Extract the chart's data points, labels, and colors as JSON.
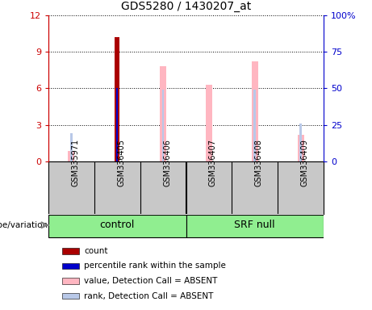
{
  "title": "GDS5280 / 1430207_at",
  "samples": [
    "GSM335971",
    "GSM336405",
    "GSM336406",
    "GSM336407",
    "GSM336408",
    "GSM336409"
  ],
  "ylim_left": [
    0,
    12
  ],
  "ylim_right": [
    0,
    100
  ],
  "yticks_left": [
    0,
    3,
    6,
    9,
    12
  ],
  "ytick_labels_left": [
    "0",
    "3",
    "6",
    "9",
    "12"
  ],
  "ytick_labels_right": [
    "0",
    "25",
    "50",
    "75",
    "100%"
  ],
  "count_values": [
    null,
    10.2,
    null,
    null,
    null,
    null
  ],
  "percentile_rank_values": [
    null,
    6.0,
    null,
    null,
    null,
    null
  ],
  "value_absent_values": [
    0.85,
    null,
    7.8,
    6.3,
    8.2,
    2.2
  ],
  "rank_absent_values": [
    2.3,
    null,
    5.9,
    null,
    5.9,
    3.1
  ],
  "colors": {
    "count": "#AA0000",
    "percentile_rank": "#0000CC",
    "value_absent": "#FFB6C1",
    "rank_absent": "#B8C8E8",
    "bg_sample": "#C8C8C8",
    "bg_group": "#90EE90",
    "left_axis": "#CC0000",
    "right_axis": "#0000CC"
  },
  "legend_items": [
    {
      "label": "count",
      "color": "#AA0000"
    },
    {
      "label": "percentile rank within the sample",
      "color": "#0000CC"
    },
    {
      "label": "value, Detection Call = ABSENT",
      "color": "#FFB6C1"
    },
    {
      "label": "rank, Detection Call = ABSENT",
      "color": "#B8C8E8"
    }
  ],
  "bar_width": 0.25
}
